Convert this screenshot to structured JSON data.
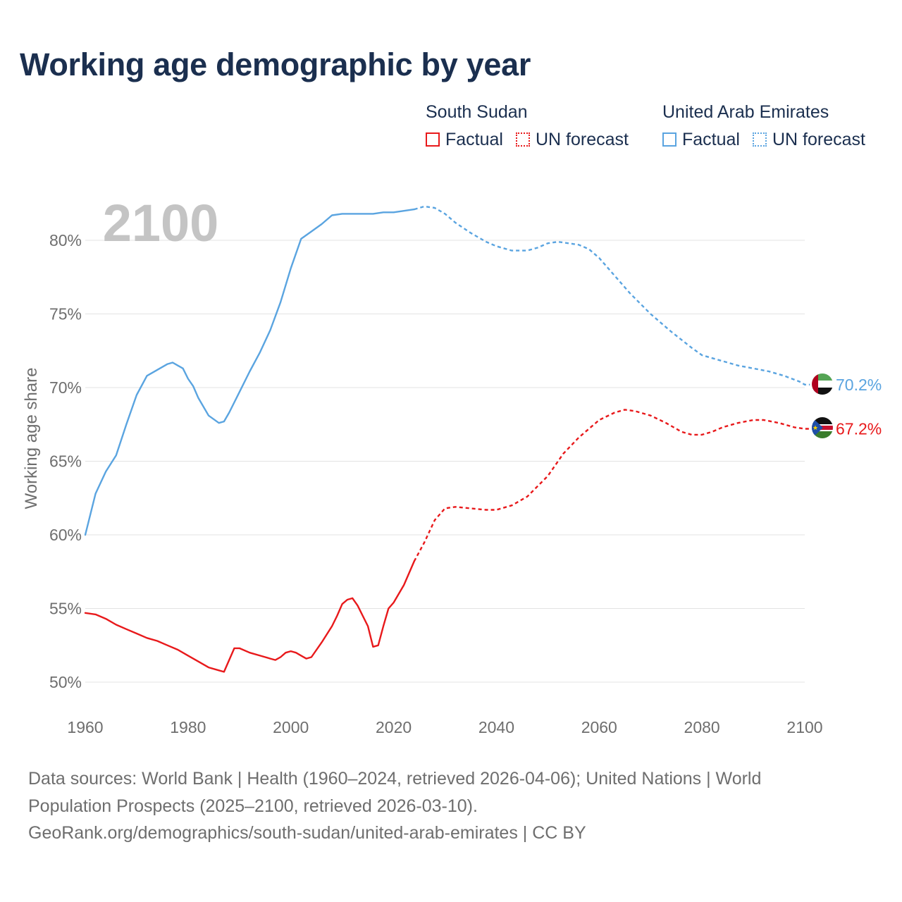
{
  "title": "Working age demographic by year",
  "legend": {
    "groups": [
      {
        "name": "South Sudan",
        "factual_label": "Factual",
        "forecast_label": "UN forecast",
        "color": "#e8191b"
      },
      {
        "name": "United Arab Emirates",
        "factual_label": "Factual",
        "forecast_label": "UN forecast",
        "color": "#5aa4e0"
      }
    ]
  },
  "year_watermark": "2100",
  "footer": {
    "line1": "Data sources: World Bank | Health (1960–2024, retrieved 2026-04-06); United Nations | World",
    "line2": "Population Prospects (2025–2100, retrieved 2026-03-10).",
    "line3": "GeoRank.org/demographics/south-sudan/united-arab-emirates | CC BY"
  },
  "chart_data": {
    "type": "line",
    "title": "Working age demographic by year",
    "xlabel": "",
    "ylabel": "Working age share",
    "xlim": [
      1960,
      2100
    ],
    "ylim": [
      49,
      84
    ],
    "x_ticks": [
      1960,
      1980,
      2000,
      2020,
      2040,
      2060,
      2080,
      2100
    ],
    "x_tick_labels": [
      "1960",
      "1980",
      "2000",
      "2020",
      "2040",
      "2060",
      "2080",
      "2100"
    ],
    "y_ticks": [
      50,
      55,
      60,
      65,
      70,
      75,
      80
    ],
    "y_tick_labels": [
      "50%",
      "55%",
      "60%",
      "65%",
      "70%",
      "75%",
      "80%"
    ],
    "grid": true,
    "legend_position": "top-right",
    "series": [
      {
        "name": "South Sudan",
        "color": "#e8191b",
        "end_label": "67.2%",
        "factual": {
          "x": [
            1960,
            1962,
            1964,
            1966,
            1968,
            1970,
            1972,
            1974,
            1976,
            1978,
            1980,
            1982,
            1984,
            1986,
            1987,
            1988,
            1989,
            1990,
            1992,
            1994,
            1996,
            1997,
            1998,
            1999,
            2000,
            2001,
            2002,
            2003,
            2004,
            2006,
            2008,
            2009,
            2010,
            2011,
            2012,
            2013,
            2014,
            2015,
            2016,
            2017,
            2018,
            2019,
            2020,
            2022,
            2024
          ],
          "y": [
            54.7,
            54.6,
            54.3,
            53.9,
            53.6,
            53.3,
            53.0,
            52.8,
            52.5,
            52.2,
            51.8,
            51.4,
            51.0,
            50.8,
            50.7,
            51.5,
            52.3,
            52.3,
            52.0,
            51.8,
            51.6,
            51.5,
            51.7,
            52.0,
            52.1,
            52.0,
            51.8,
            51.6,
            51.7,
            52.7,
            53.8,
            54.5,
            55.3,
            55.6,
            55.7,
            55.2,
            54.5,
            53.8,
            52.4,
            52.5,
            53.8,
            55.0,
            55.4,
            56.6,
            58.2
          ]
        },
        "forecast": {
          "x": [
            2024,
            2026,
            2028,
            2030,
            2032,
            2035,
            2038,
            2040,
            2043,
            2046,
            2050,
            2053,
            2056,
            2060,
            2063,
            2065,
            2067,
            2070,
            2073,
            2076,
            2078,
            2080,
            2082,
            2084,
            2087,
            2090,
            2092,
            2095,
            2098,
            2100,
            2101
          ],
          "y": [
            58.2,
            59.5,
            61.0,
            61.8,
            61.9,
            61.8,
            61.7,
            61.7,
            62.0,
            62.6,
            64.0,
            65.5,
            66.6,
            67.8,
            68.3,
            68.5,
            68.4,
            68.1,
            67.6,
            67.0,
            66.8,
            66.8,
            67.0,
            67.3,
            67.6,
            67.8,
            67.8,
            67.6,
            67.3,
            67.2,
            67.2
          ]
        }
      },
      {
        "name": "United Arab Emirates",
        "color": "#5aa4e0",
        "end_label": "70.2%",
        "factual": {
          "x": [
            1960,
            1962,
            1964,
            1966,
            1968,
            1970,
            1972,
            1974,
            1976,
            1977,
            1978,
            1979,
            1980,
            1981,
            1982,
            1984,
            1986,
            1987,
            1988,
            1990,
            1992,
            1994,
            1996,
            1998,
            2000,
            2002,
            2004,
            2006,
            2008,
            2010,
            2012,
            2014,
            2016,
            2018,
            2020,
            2022,
            2024
          ],
          "y": [
            60.0,
            62.8,
            64.3,
            65.4,
            67.5,
            69.5,
            70.8,
            71.2,
            71.6,
            71.7,
            71.5,
            71.3,
            70.6,
            70.1,
            69.3,
            68.1,
            67.6,
            67.7,
            68.3,
            69.7,
            71.1,
            72.4,
            73.9,
            75.8,
            78.1,
            80.1,
            80.6,
            81.1,
            81.7,
            81.8,
            81.8,
            81.8,
            81.8,
            81.9,
            81.9,
            82.0,
            82.1
          ]
        },
        "forecast": {
          "x": [
            2024,
            2026,
            2028,
            2030,
            2032,
            2035,
            2038,
            2040,
            2043,
            2046,
            2048,
            2050,
            2052,
            2054,
            2056,
            2058,
            2060,
            2063,
            2066,
            2070,
            2074,
            2078,
            2080,
            2084,
            2087,
            2090,
            2093,
            2096,
            2099,
            2100,
            2101
          ],
          "y": [
            82.1,
            82.3,
            82.2,
            81.8,
            81.2,
            80.5,
            79.9,
            79.6,
            79.3,
            79.3,
            79.5,
            79.8,
            79.9,
            79.8,
            79.7,
            79.4,
            78.8,
            77.6,
            76.4,
            75.0,
            73.8,
            72.7,
            72.2,
            71.8,
            71.5,
            71.3,
            71.1,
            70.8,
            70.4,
            70.2,
            70.2
          ]
        }
      }
    ]
  }
}
